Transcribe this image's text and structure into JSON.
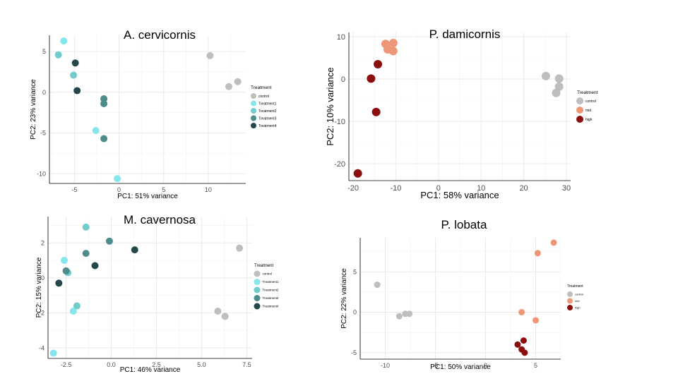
{
  "chart_data": [
    {
      "type": "scatter",
      "title": "A. cervicornis",
      "xlabel": "PC1: 51% variance",
      "ylabel": "PC2: 23% variance",
      "xlim": [
        -7.8,
        14.2
      ],
      "ylim": [
        -11.2,
        7.0
      ],
      "xticks": [
        -5,
        0,
        5,
        10
      ],
      "yticks": [
        -10,
        -5,
        0,
        5
      ],
      "grid": true,
      "legend_title": "Treatment",
      "legend_position": "right",
      "series": [
        {
          "name": "control",
          "color": "#BEBEBE",
          "points": [
            [
              10.2,
              4.5
            ],
            [
              12.3,
              0.7
            ],
            [
              13.3,
              1.3
            ]
          ]
        },
        {
          "name": "Treatment1",
          "color": "#86E6EE",
          "points": [
            [
              -6.2,
              6.3
            ],
            [
              -2.6,
              -4.7
            ],
            [
              -0.2,
              -10.6
            ]
          ]
        },
        {
          "name": "Treatment2",
          "color": "#73CBCB",
          "points": [
            [
              -6.8,
              4.6
            ],
            [
              -5.1,
              2.1
            ]
          ]
        },
        {
          "name": "Treatment3",
          "color": "#4E8C8C",
          "points": [
            [
              -1.7,
              -0.8
            ],
            [
              -1.7,
              -1.4
            ],
            [
              -1.7,
              -5.7
            ]
          ]
        },
        {
          "name": "Treatment4",
          "color": "#24484A",
          "points": [
            [
              -4.9,
              3.6
            ],
            [
              -4.7,
              0.2
            ]
          ]
        }
      ]
    },
    {
      "type": "scatter",
      "title": "P. damicornis",
      "xlabel": "PC1: 58% variance",
      "ylabel": "PC2: 10% variance",
      "xlim": [
        -21,
        31
      ],
      "ylim": [
        -24,
        11
      ],
      "xticks": [
        -20,
        -10,
        0,
        10,
        20,
        30
      ],
      "yticks": [
        -20,
        -10,
        0,
        10
      ],
      "grid": true,
      "legend_title": "Treatment",
      "legend_position": "right",
      "series": [
        {
          "name": "control",
          "color": "#BEBEBE",
          "points": [
            [
              25.2,
              0.7
            ],
            [
              28.3,
              0.1
            ],
            [
              28.3,
              -1.8
            ],
            [
              27.6,
              -3.3
            ]
          ]
        },
        {
          "name": "mid",
          "color": "#EE9777",
          "points": [
            [
              -12.4,
              8.3
            ],
            [
              -10.6,
              8.5
            ],
            [
              -11.9,
              7.0
            ],
            [
              -10.6,
              6.6
            ]
          ]
        },
        {
          "name": "high",
          "color": "#8B0F0F",
          "points": [
            [
              -14.2,
              3.5
            ],
            [
              -15.8,
              0.1
            ],
            [
              -14.6,
              -7.8
            ],
            [
              -18.9,
              -22.3
            ]
          ]
        }
      ]
    },
    {
      "type": "scatter",
      "title": "M. cavernosa",
      "xlabel": "PC1: 46% variance",
      "ylabel": "PC2: 15% variance",
      "xlim": [
        -3.5,
        7.8
      ],
      "ylim": [
        -4.6,
        3.5
      ],
      "xticks": [
        -2.5,
        0.0,
        2.5,
        5.0,
        7.5
      ],
      "xtick_labels": [
        "-2.5",
        "0.0",
        "2.5",
        "5.0",
        "7.5"
      ],
      "yticks": [
        -4,
        -2,
        0,
        2
      ],
      "grid": true,
      "legend_title": "Treatment",
      "legend_position": "right",
      "series": [
        {
          "name": "control",
          "color": "#BEBEBE",
          "points": [
            [
              7.1,
              1.7
            ],
            [
              5.9,
              -1.9
            ],
            [
              6.3,
              -2.2
            ]
          ]
        },
        {
          "name": "Treatment1",
          "color": "#86E6EE",
          "points": [
            [
              -2.6,
              1.0
            ],
            [
              -2.1,
              -1.9
            ],
            [
              -3.2,
              -4.3
            ]
          ]
        },
        {
          "name": "Treatment2",
          "color": "#73CBCB",
          "points": [
            [
              -1.4,
              2.9
            ],
            [
              -2.4,
              0.3
            ],
            [
              -1.9,
              -1.6
            ]
          ]
        },
        {
          "name": "Treatment3",
          "color": "#4E8C8C",
          "points": [
            [
              -0.1,
              2.1
            ],
            [
              -1.4,
              1.4
            ],
            [
              -2.5,
              0.4
            ]
          ]
        },
        {
          "name": "Treatment4",
          "color": "#24484A",
          "points": [
            [
              1.3,
              1.6
            ],
            [
              -0.9,
              0.7
            ],
            [
              -2.9,
              -0.3
            ]
          ]
        }
      ]
    },
    {
      "type": "scatter",
      "title": "P. lobata",
      "xlabel": "PC1: 50% variance",
      "ylabel": "PC2: 22% variance",
      "xlim": [
        -12.5,
        7.5
      ],
      "ylim": [
        -5.8,
        9.2
      ],
      "xticks": [
        -10,
        -5,
        0,
        5
      ],
      "yticks": [
        -5,
        0,
        5
      ],
      "grid": true,
      "legend_title": "Treatment",
      "legend_position": "right",
      "series": [
        {
          "name": "control",
          "color": "#BEBEBE",
          "points": [
            [
              -10.8,
              3.4
            ],
            [
              -8.6,
              -0.5
            ],
            [
              -8.0,
              -0.2
            ],
            [
              -7.6,
              -0.2
            ]
          ]
        },
        {
          "name": "mid",
          "color": "#EE9777",
          "points": [
            [
              6.8,
              8.6
            ],
            [
              5.2,
              7.3
            ],
            [
              3.6,
              0.0
            ],
            [
              5.0,
              -1.0
            ]
          ]
        },
        {
          "name": "high",
          "color": "#8B0F0F",
          "points": [
            [
              3.8,
              -3.5
            ],
            [
              3.2,
              -4.0
            ],
            [
              3.6,
              -4.6
            ],
            [
              3.9,
              -5.0
            ]
          ]
        }
      ]
    }
  ]
}
